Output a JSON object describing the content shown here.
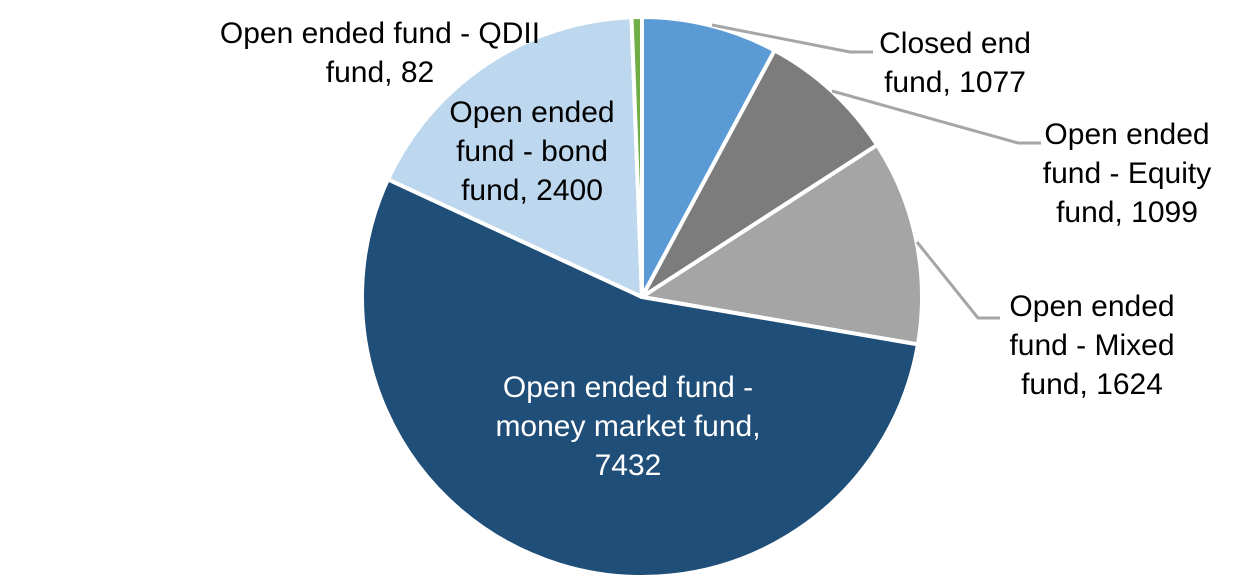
{
  "chart_data": {
    "type": "pie",
    "title": "",
    "legend": "none",
    "background_color": "#FFFFFF",
    "leader_line_color": "#A6A6A6",
    "slice_border_color": "#FFFFFF",
    "total": 13714,
    "start_angle_deg": 0,
    "direction": "clockwise",
    "series": [
      {
        "id": "closed-end-fund",
        "name": "Closed end fund",
        "value": 1077,
        "color": "#5B9BD5",
        "label_lines": [
          "Closed end",
          "fund, 1077"
        ],
        "label_placement": "outside-right",
        "label_color": "#000000",
        "leader_line": true
      },
      {
        "id": "equity-fund",
        "name": "Open ended fund - Equity fund",
        "value": 1099,
        "color": "#7C7C7C",
        "label_lines": [
          "Open ended",
          "fund - Equity",
          "fund, 1099"
        ],
        "label_placement": "outside-right",
        "label_color": "#000000",
        "leader_line": true
      },
      {
        "id": "mixed-fund",
        "name": "Open ended fund - Mixed fund",
        "value": 1624,
        "color": "#A5A5A5",
        "label_lines": [
          "Open ended",
          "fund - Mixed",
          "fund, 1624"
        ],
        "label_placement": "outside-right",
        "label_color": "#000000",
        "leader_line": true
      },
      {
        "id": "money-market-fund",
        "name": "Open ended fund - money market fund",
        "value": 7432,
        "color": "#1F4E79",
        "label_lines": [
          "Open ended fund -",
          "money market fund,",
          "7432"
        ],
        "label_placement": "inside",
        "label_color": "#FFFFFF",
        "leader_line": false
      },
      {
        "id": "bond-fund",
        "name": "Open ended fund - bond fund",
        "value": 2400,
        "color": "#BDD7EE",
        "label_lines": [
          "Open ended",
          "fund - bond",
          "fund, 2400"
        ],
        "label_placement": "inside-top",
        "label_color": "#000000",
        "leader_line": false
      },
      {
        "id": "qdii-fund",
        "name": "Open ended fund - QDII fund",
        "value": 82,
        "color": "#70AD47",
        "label_lines": [
          "Open ended fund - QDII",
          "fund, 82"
        ],
        "label_placement": "outside-left",
        "label_color": "#000000",
        "leader_line": false
      }
    ]
  }
}
